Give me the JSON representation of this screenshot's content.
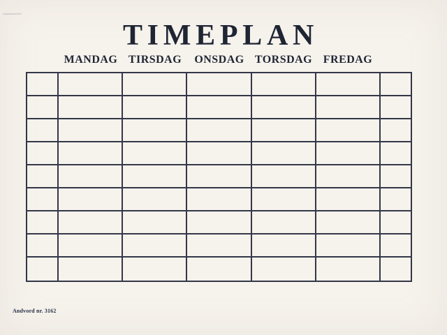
{
  "page": {
    "title": "TIMEPLAN"
  },
  "schedule": {
    "day_headers": [
      "MANDAG",
      "TIRSDAG",
      "ONSDAG",
      "TORSDAG",
      "FREDAG"
    ],
    "rows": 9,
    "columns_total": 7,
    "left_gutter_column": true,
    "right_gutter_column": true,
    "cells": "empty"
  },
  "footer": {
    "imprint": "Andvord nr. 3162"
  },
  "colors": {
    "paper": "#f6f2ec",
    "grid_line": "#333748",
    "ink": "#1e2533"
  }
}
